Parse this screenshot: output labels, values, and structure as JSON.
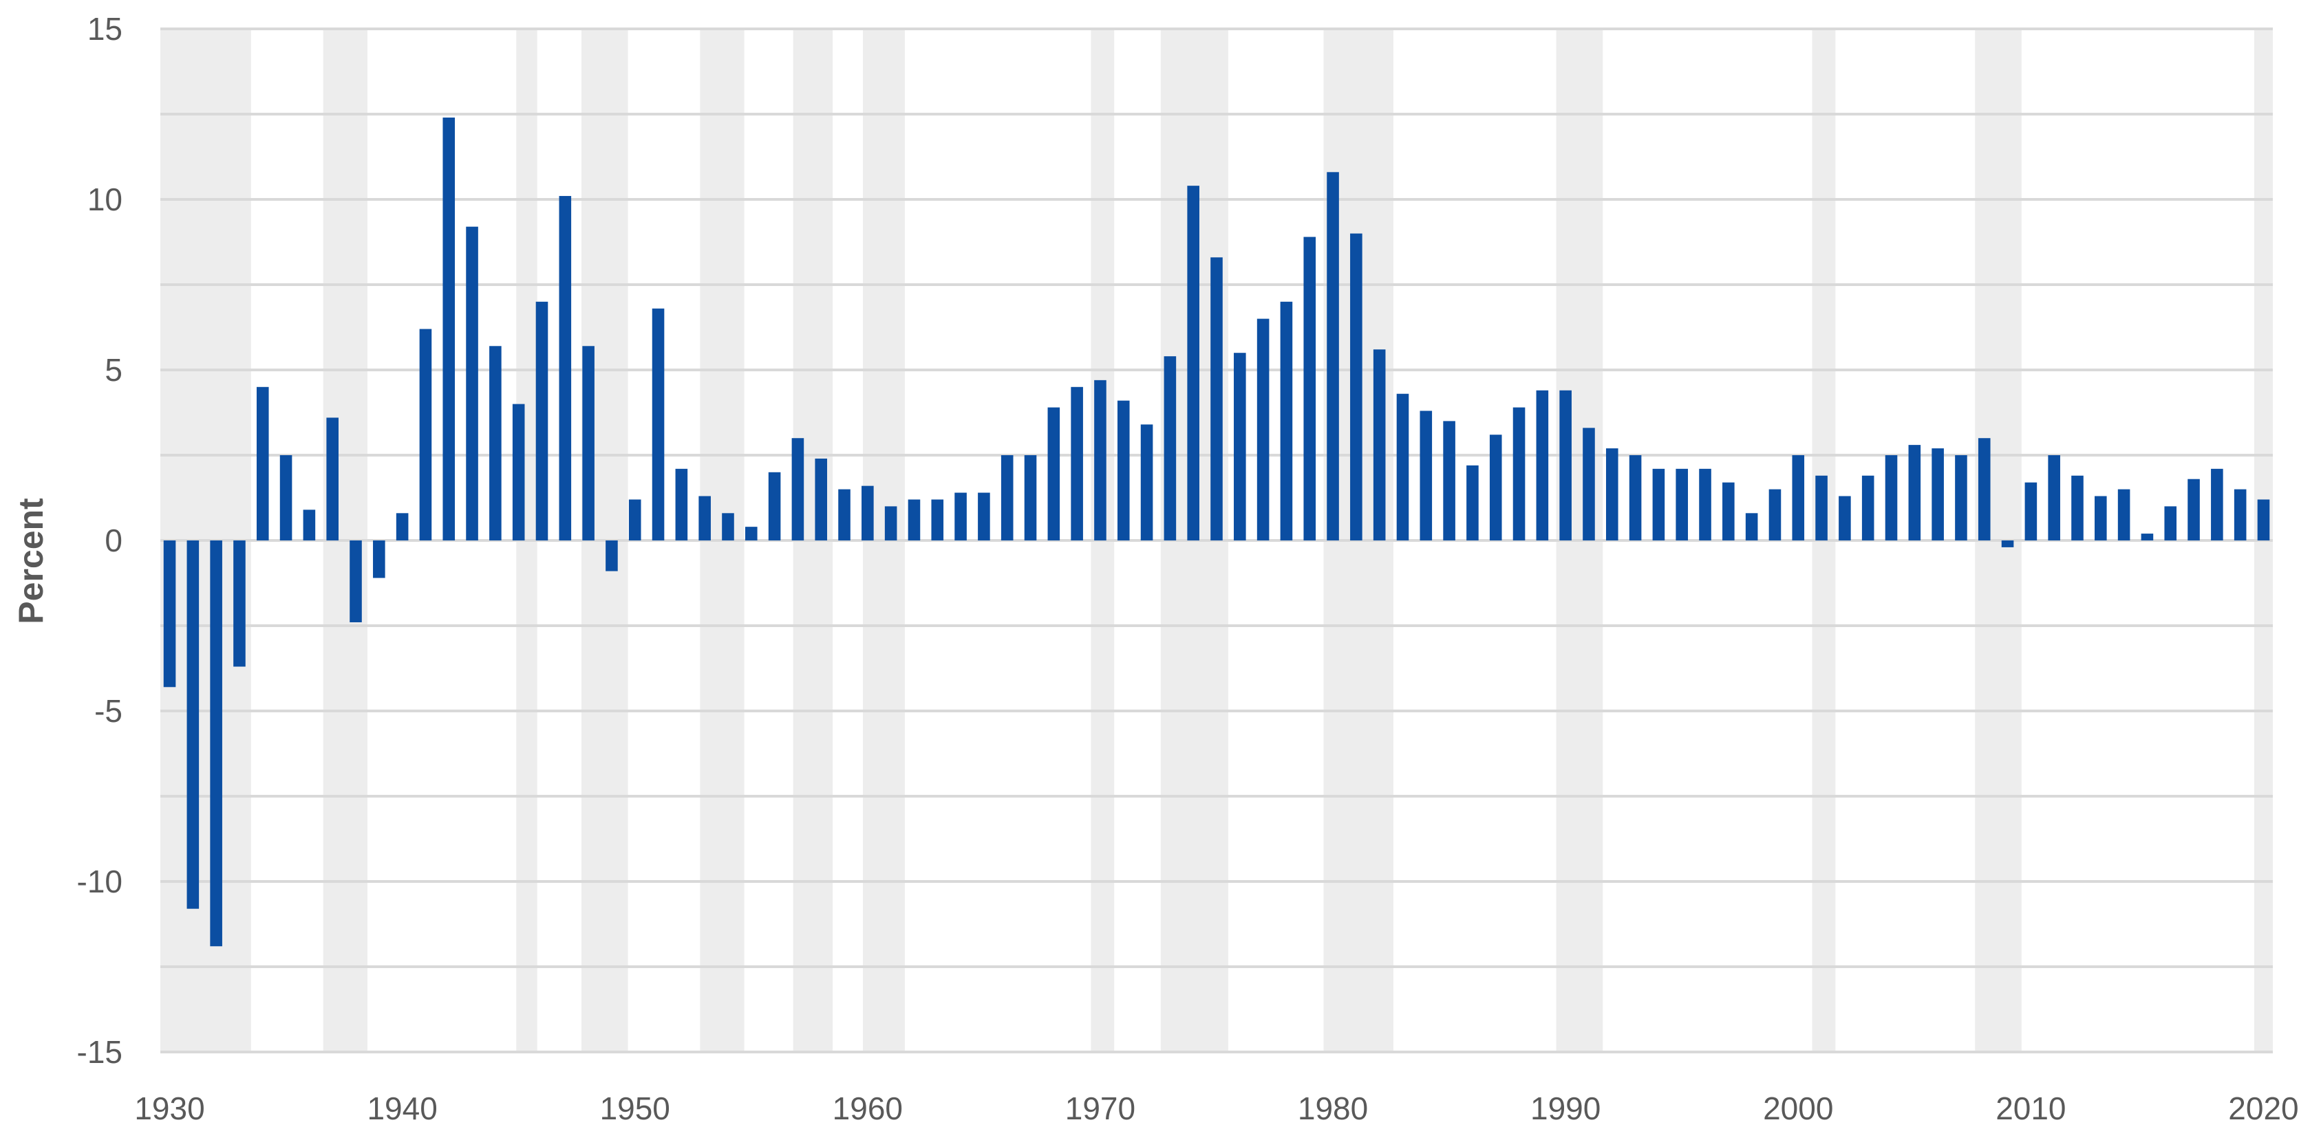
{
  "chart_data": {
    "type": "bar",
    "title": "",
    "xlabel": "",
    "ylabel": "Percent",
    "ylim": [
      -15,
      15
    ],
    "yticks": [
      15,
      10,
      5,
      0,
      -5,
      -10,
      -15
    ],
    "xticks": [
      1930,
      1940,
      1950,
      1960,
      1970,
      1980,
      1990,
      2000,
      2010,
      2020
    ],
    "xlim": [
      1929.6,
      2020.4
    ],
    "grid": "horizontal",
    "colors": {
      "bar": "#0B4EA2",
      "recession_band": "#EDEDED",
      "grid": "#D9D9D9",
      "tick_text": "#595959"
    },
    "recession_periods": [
      [
        1929.5,
        1933.5
      ],
      [
        1936.6,
        1938.5
      ],
      [
        1944.9,
        1945.8
      ],
      [
        1947.7,
        1949.7
      ],
      [
        1952.8,
        1954.7
      ],
      [
        1956.8,
        1958.5
      ],
      [
        1959.8,
        1961.6
      ],
      [
        1969.6,
        1970.6
      ],
      [
        1972.6,
        1975.5
      ],
      [
        1979.6,
        1982.6
      ],
      [
        1989.6,
        1991.6
      ],
      [
        2000.6,
        2001.6
      ],
      [
        2007.6,
        2009.6
      ],
      [
        2019.6,
        2020.6
      ]
    ],
    "x": [
      1930,
      1931,
      1932,
      1933,
      1934,
      1935,
      1936,
      1937,
      1938,
      1939,
      1940,
      1941,
      1942,
      1943,
      1944,
      1945,
      1946,
      1947,
      1948,
      1949,
      1950,
      1951,
      1952,
      1953,
      1954,
      1955,
      1956,
      1957,
      1958,
      1959,
      1960,
      1961,
      1962,
      1963,
      1964,
      1965,
      1966,
      1967,
      1968,
      1969,
      1970,
      1971,
      1972,
      1973,
      1974,
      1975,
      1976,
      1977,
      1978,
      1979,
      1980,
      1981,
      1982,
      1983,
      1984,
      1985,
      1986,
      1987,
      1988,
      1989,
      1990,
      1991,
      1992,
      1993,
      1994,
      1995,
      1996,
      1997,
      1998,
      1999,
      2000,
      2001,
      2002,
      2003,
      2004,
      2005,
      2006,
      2007,
      2008,
      2009,
      2010,
      2011,
      2012,
      2013,
      2014,
      2015,
      2016,
      2017,
      2018,
      2019,
      2020
    ],
    "values": [
      -4.3,
      -10.8,
      -11.9,
      -3.7,
      4.5,
      2.5,
      0.9,
      3.6,
      -2.4,
      -1.1,
      0.8,
      6.2,
      12.4,
      9.2,
      5.7,
      4.0,
      7.0,
      10.1,
      5.7,
      -0.9,
      1.2,
      6.8,
      2.1,
      1.3,
      0.8,
      0.4,
      2.0,
      3.0,
      2.4,
      1.5,
      1.6,
      1.0,
      1.2,
      1.2,
      1.4,
      1.4,
      2.5,
      2.5,
      3.9,
      4.5,
      4.7,
      4.1,
      3.4,
      5.4,
      10.4,
      8.3,
      5.5,
      6.5,
      7.0,
      8.9,
      10.8,
      9.0,
      5.6,
      4.3,
      3.8,
      3.5,
      2.2,
      3.1,
      3.9,
      4.4,
      4.4,
      3.3,
      2.7,
      2.5,
      2.1,
      2.1,
      2.1,
      1.7,
      0.8,
      1.5,
      2.5,
      1.9,
      1.3,
      1.9,
      2.5,
      2.8,
      2.7,
      2.5,
      3.0,
      -0.2,
      1.7,
      2.5,
      1.9,
      1.3,
      1.5,
      0.2,
      1.0,
      1.8,
      2.1,
      1.5,
      1.2
    ]
  }
}
